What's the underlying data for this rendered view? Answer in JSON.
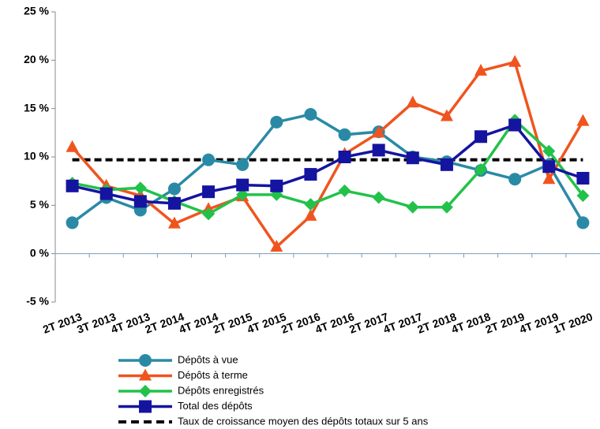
{
  "chart_data": {
    "type": "line",
    "categories": [
      "2T 2013",
      "3T 2013",
      "4T 2013",
      "2T 2014",
      "4T 2014",
      "2T 2015",
      "4T 2015",
      "2T 2016",
      "4T 2016",
      "2T 2017",
      "4T 2017",
      "2T 2018",
      "4T 2018",
      "2T 2019",
      "4T 2019",
      "1T 2020"
    ],
    "series": [
      {
        "name": "Dépôts à vue",
        "color": "#2a8aa5",
        "marker": "circle",
        "values": [
          3.2,
          5.8,
          4.5,
          6.7,
          9.7,
          9.2,
          13.6,
          14.4,
          12.3,
          12.6,
          10.0,
          9.5,
          8.6,
          7.7,
          9.2,
          3.2
        ]
      },
      {
        "name": "Dépôts à terme",
        "color": "#f0541e",
        "marker": "triangle",
        "values": [
          11.0,
          7.0,
          6.0,
          3.1,
          4.6,
          5.9,
          0.7,
          3.9,
          10.3,
          12.5,
          15.6,
          14.2,
          18.9,
          19.8,
          7.7,
          13.7
        ]
      },
      {
        "name": "Dépôts enregistrés",
        "color": "#22c24a",
        "marker": "diamond",
        "values": [
          7.3,
          6.6,
          6.8,
          5.4,
          4.1,
          6.1,
          6.1,
          5.1,
          6.5,
          5.8,
          4.8,
          4.8,
          8.7,
          13.8,
          10.6,
          6.0
        ]
      },
      {
        "name": "Total des dépôts",
        "color": "#1414a0",
        "marker": "square",
        "values": [
          7.0,
          6.2,
          5.4,
          5.2,
          6.4,
          7.1,
          7.0,
          8.2,
          10.0,
          10.7,
          9.9,
          9.2,
          12.1,
          13.3,
          9.0,
          7.8
        ]
      }
    ],
    "reference_line": {
      "name": "Taux de croissance moyen des dépôts totaux sur 5 ans",
      "value": 9.7,
      "color": "#000000"
    },
    "ylim": [
      -5,
      25
    ],
    "yticks": [
      {
        "value": -5,
        "label": "-5 %"
      },
      {
        "value": 0,
        "label": "0 %"
      },
      {
        "value": 5,
        "label": "5 %"
      },
      {
        "value": 10,
        "label": "10 %"
      },
      {
        "value": 15,
        "label": "15 %"
      },
      {
        "value": 20,
        "label": "20 %"
      },
      {
        "value": 25,
        "label": "25 %"
      }
    ]
  }
}
